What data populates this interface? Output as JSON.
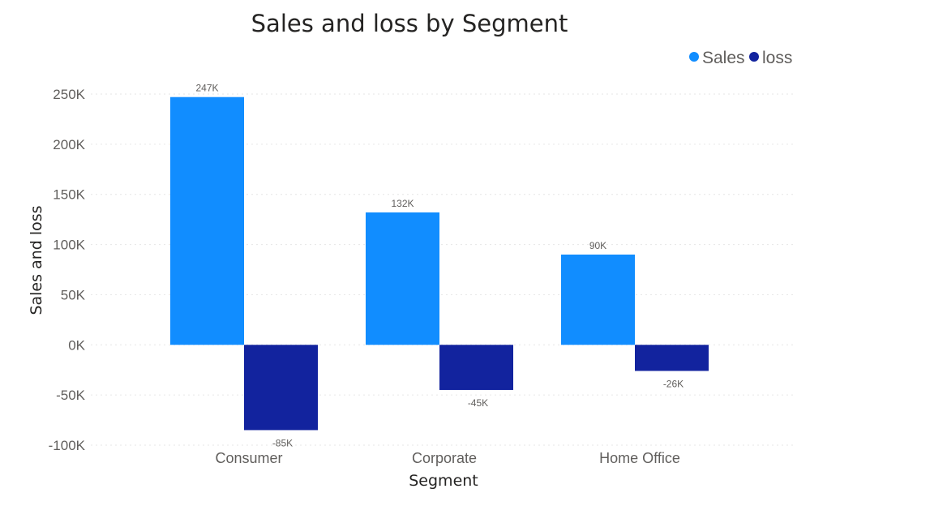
{
  "chart_data": {
    "type": "bar",
    "title": "Sales and loss by Segment",
    "xlabel": "Segment",
    "ylabel": "Sales and loss",
    "categories": [
      "Consumer",
      "Corporate",
      "Home Office"
    ],
    "series": [
      {
        "name": "Sales",
        "values": [
          247000,
          132000,
          90000
        ],
        "labels": [
          "247K",
          "132K",
          "90K"
        ],
        "color": "#118DFF"
      },
      {
        "name": "loss",
        "values": [
          -85000,
          -45000,
          -26000
        ],
        "labels": [
          "-85K",
          "-45K",
          "-26K"
        ],
        "color": "#12239E"
      }
    ],
    "ylim": [
      -100000,
      250000
    ],
    "yticks": [
      250000,
      200000,
      150000,
      100000,
      50000,
      0,
      -50000,
      -100000
    ],
    "ytick_labels": [
      "250K",
      "200K",
      "150K",
      "100K",
      "50K",
      "0K",
      "-50K",
      "-100K"
    ],
    "grid": true,
    "legend_position": "top-right"
  }
}
